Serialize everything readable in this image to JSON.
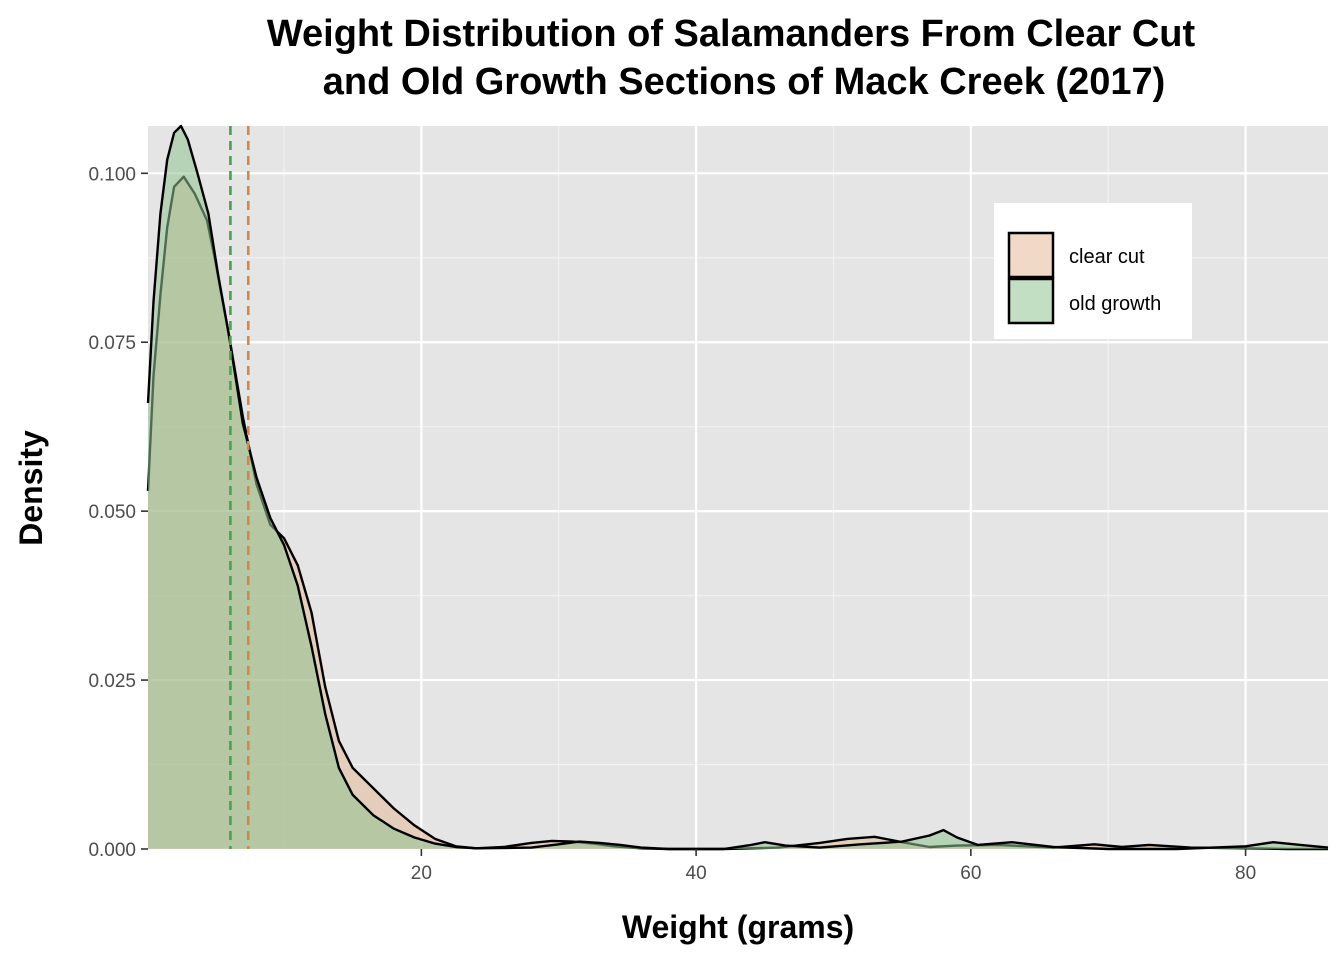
{
  "chart_data": {
    "type": "area",
    "title_lines": [
      "Weight Distribution of Salamanders From Clear Cut",
      "and Old Growth Sections of Mack Creek (2017)"
    ],
    "xlabel": "Weight (grams)",
    "ylabel": "Density",
    "xlim": [
      0.1,
      86
    ],
    "ylim": [
      0,
      0.107
    ],
    "x_ticks": [
      20,
      40,
      60,
      80
    ],
    "x_tick_labels": [
      "20",
      "40",
      "60",
      "80"
    ],
    "y_ticks": [
      0,
      0.025,
      0.05,
      0.075,
      0.1
    ],
    "y_tick_labels": [
      "0.000",
      "0.025",
      "0.050",
      "0.075",
      "0.100"
    ],
    "grid": true,
    "legend_position": "top-right",
    "series": [
      {
        "name": "clear cut",
        "fill": "#e3b999",
        "line": "#000000",
        "mean_line_color": "#d2884a",
        "mean_x": 7.4,
        "x": [
          0.1,
          0.5,
          1.0,
          1.5,
          2.0,
          2.7,
          3.5,
          4.4,
          5.0,
          6.0,
          7.0,
          8.0,
          9.0,
          10.0,
          11.0,
          12.0,
          13.0,
          14.0,
          15.0,
          16.5,
          18.0,
          19.5,
          21.0,
          22.5,
          24.0,
          26.0,
          28.0,
          29.5,
          31.0,
          32.5,
          34.0,
          36.0,
          38.0,
          42.0,
          46.0,
          49.0,
          51.0,
          53.0,
          55.0,
          57.0,
          59.0,
          62.0,
          66.0,
          69.0,
          71.0,
          73.0,
          76.0,
          80.0,
          83.0,
          86.0
        ],
        "y": [
          0.053,
          0.07,
          0.082,
          0.092,
          0.098,
          0.0995,
          0.097,
          0.093,
          0.087,
          0.076,
          0.064,
          0.054,
          0.048,
          0.046,
          0.042,
          0.035,
          0.024,
          0.016,
          0.012,
          0.009,
          0.006,
          0.0035,
          0.0015,
          0.0004,
          0.0001,
          0.0003,
          0.0009,
          0.0012,
          0.0011,
          0.0008,
          0.0004,
          0.0001,
          0.0,
          0.0,
          0.0002,
          0.0009,
          0.0015,
          0.0018,
          0.001,
          0.0003,
          0.0005,
          0.0006,
          0.0002,
          0.0007,
          0.0003,
          0.0006,
          0.0002,
          0.0001,
          0.0,
          0.0
        ]
      },
      {
        "name": "old growth",
        "fill": "#8fc392",
        "line": "#000000",
        "mean_line_color": "#4aa14d",
        "mean_x": 6.1,
        "x": [
          0.1,
          0.5,
          1.0,
          1.5,
          2.0,
          2.5,
          3.0,
          3.7,
          4.5,
          5.2,
          6.0,
          7.0,
          8.0,
          9.0,
          10.0,
          11.0,
          12.0,
          13.0,
          14.0,
          15.0,
          16.5,
          18.0,
          19.5,
          21.0,
          22.5,
          24.0,
          28.0,
          30.0,
          31.5,
          33.0,
          34.5,
          36.0,
          38.0,
          42.0,
          44.0,
          45.0,
          46.5,
          49.0,
          52.0,
          55.0,
          57.0,
          58.0,
          59.0,
          60.5,
          63.0,
          66.0,
          70.0,
          75.0,
          80.0,
          82.0,
          84.0,
          86.0
        ],
        "y": [
          0.066,
          0.081,
          0.094,
          0.102,
          0.106,
          0.107,
          0.105,
          0.1,
          0.094,
          0.085,
          0.076,
          0.063,
          0.055,
          0.049,
          0.045,
          0.039,
          0.03,
          0.02,
          0.012,
          0.008,
          0.005,
          0.003,
          0.0017,
          0.0008,
          0.0003,
          0.0001,
          0.0002,
          0.0007,
          0.0011,
          0.0009,
          0.0006,
          0.0002,
          0.0,
          0.0,
          0.0006,
          0.001,
          0.0005,
          0.0002,
          0.0007,
          0.0011,
          0.002,
          0.0028,
          0.0017,
          0.0006,
          0.001,
          0.0003,
          0.0,
          0.0,
          0.0004,
          0.001,
          0.0006,
          0.0002
        ]
      }
    ]
  }
}
